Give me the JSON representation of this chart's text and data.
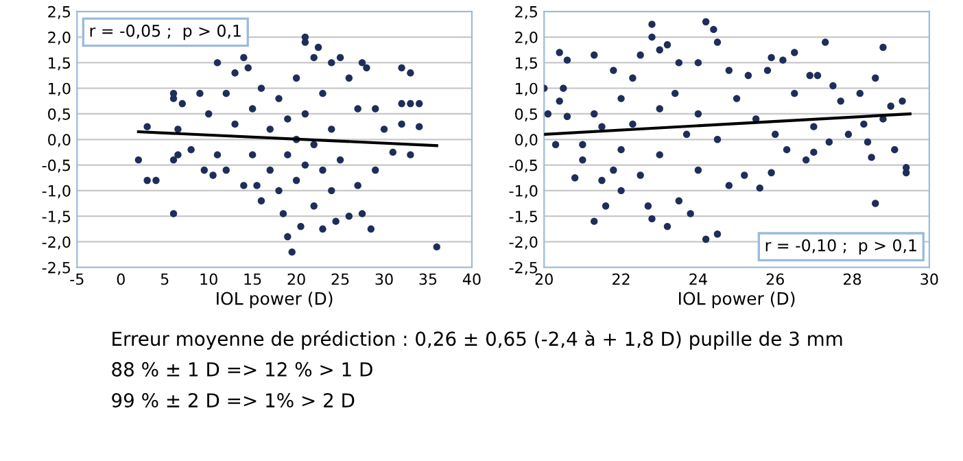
{
  "chart_data": [
    {
      "type": "scatter",
      "xlabel": "IOL power (D)",
      "xlim": [
        -5,
        40
      ],
      "ylim": [
        -2.5,
        2.5
      ],
      "xticks": [
        -5,
        0,
        5,
        10,
        15,
        20,
        25,
        30,
        35,
        40
      ],
      "yticks": [
        {
          "value": -2.5,
          "label": "-2,5"
        },
        {
          "value": -2.0,
          "label": "-2,0"
        },
        {
          "value": -1.5,
          "label": "-1,5"
        },
        {
          "value": -1.0,
          "label": "-1,0"
        },
        {
          "value": -0.5,
          "label": "-0,5"
        },
        {
          "value": 0.0,
          "label": "0,0"
        },
        {
          "value": 0.5,
          "label": "0,5"
        },
        {
          "value": 1.0,
          "label": "1,0"
        },
        {
          "value": 1.5,
          "label": "1,5"
        },
        {
          "value": 2.0,
          "label": "2,0"
        },
        {
          "value": 2.5,
          "label": "2,5"
        }
      ],
      "grid": "y",
      "annotations": [
        "r = -0,05 ;  p > 0,1"
      ],
      "series": [
        {
          "type": "scatter",
          "marker": "circle",
          "color": "#1f2d5a",
          "x": [
            2,
            3,
            3,
            4,
            6,
            6,
            6,
            6,
            6.5,
            6.5,
            7,
            8,
            9,
            9.5,
            10,
            10.5,
            11,
            11,
            12,
            12,
            13,
            13,
            14,
            14,
            14.5,
            15,
            15,
            15.5,
            16,
            16,
            17,
            17,
            18,
            18,
            18.5,
            19,
            19,
            19,
            19.5,
            20,
            20,
            20,
            20.5,
            21,
            21,
            21,
            21,
            22,
            22,
            22,
            22.5,
            23,
            23,
            23,
            24,
            24,
            24,
            24.5,
            25,
            25,
            26,
            26,
            27,
            27,
            27.5,
            27.5,
            28,
            28.5,
            29,
            29,
            30,
            31,
            32,
            32,
            32,
            33,
            33,
            33,
            34,
            34,
            36
          ],
          "values": [
            -0.4,
            0.25,
            -0.8,
            -0.8,
            0.9,
            0.8,
            -0.4,
            -1.45,
            0.2,
            -0.3,
            0.7,
            -0.2,
            0.9,
            -0.6,
            0.5,
            -0.7,
            1.5,
            -0.3,
            0.9,
            -0.6,
            1.3,
            0.3,
            1.6,
            -0.9,
            1.4,
            0.6,
            -0.3,
            -0.9,
            1.0,
            -1.2,
            0.2,
            -0.6,
            0.8,
            -1.0,
            -1.45,
            0.4,
            -0.3,
            -1.9,
            -2.2,
            1.2,
            0.0,
            -0.8,
            -1.7,
            1.9,
            2.0,
            0.5,
            -0.5,
            1.6,
            -0.1,
            -1.3,
            1.8,
            0.9,
            -0.6,
            -1.75,
            1.5,
            0.2,
            -1.0,
            -1.6,
            1.6,
            -0.4,
            1.2,
            -1.5,
            0.6,
            -0.9,
            1.5,
            -1.45,
            1.4,
            -1.75,
            0.6,
            -0.6,
            0.2,
            -0.25,
            1.4,
            0.7,
            0.3,
            1.3,
            0.7,
            -0.3,
            0.7,
            0.25,
            -2.1
          ]
        },
        {
          "type": "line",
          "color": "#000000",
          "x": [
            2,
            36
          ],
          "values": [
            0.15,
            -0.12
          ]
        }
      ]
    },
    {
      "type": "scatter",
      "xlabel": "IOL power (D)",
      "xlim": [
        20,
        30
      ],
      "ylim": [
        -2.5,
        2.5
      ],
      "xticks": [
        20,
        22,
        24,
        26,
        28,
        30
      ],
      "yticks": [
        {
          "value": -2.5,
          "label": "-2,5"
        },
        {
          "value": -2.0,
          "label": "-2,0"
        },
        {
          "value": -1.5,
          "label": "-1,5"
        },
        {
          "value": -1.0,
          "label": "-1,0"
        },
        {
          "value": -0.5,
          "label": "-0,5"
        },
        {
          "value": 0.0,
          "label": "0,0"
        },
        {
          "value": 0.5,
          "label": "0,5"
        },
        {
          "value": 1.0,
          "label": "1,0"
        },
        {
          "value": 1.5,
          "label": "1,5"
        },
        {
          "value": 2.0,
          "label": "2,0"
        },
        {
          "value": 2.5,
          "label": "2,5"
        }
      ],
      "grid": "y",
      "annotations": [
        "r = -0,10 ;  p > 0,1"
      ],
      "series": [
        {
          "type": "scatter",
          "marker": "circle",
          "color": "#1f2d5a",
          "x": [
            20,
            20.1,
            20.3,
            20.4,
            20.4,
            20.5,
            20.6,
            20.6,
            20.8,
            21,
            21,
            21.3,
            21.3,
            21.3,
            21.5,
            21.5,
            21.6,
            21.8,
            21.8,
            22,
            22,
            22,
            22.3,
            22.3,
            22.5,
            22.5,
            22.7,
            22.8,
            22.8,
            22.8,
            23,
            23,
            23,
            23.2,
            23.2,
            23.4,
            23.5,
            23.5,
            23.7,
            23.8,
            24,
            24,
            24,
            24.2,
            24.2,
            24.4,
            24.5,
            24.5,
            24.5,
            24.8,
            24.8,
            25,
            25.2,
            25.3,
            25.5,
            25.6,
            25.8,
            25.9,
            25.9,
            26,
            26.2,
            26.3,
            26.5,
            26.5,
            26.8,
            26.9,
            27,
            27,
            27.1,
            27.3,
            27.4,
            27.5,
            27.7,
            27.9,
            28.2,
            28.3,
            28.4,
            28.5,
            28.6,
            28.6,
            28.8,
            28.8,
            29,
            29.1,
            29.3,
            29.4,
            29.4
          ],
          "values": [
            1.0,
            0.5,
            -0.1,
            0.75,
            1.7,
            1.0,
            0.45,
            1.55,
            -0.75,
            -0.4,
            -0.1,
            1.65,
            0.5,
            -1.6,
            0.25,
            -0.8,
            -1.3,
            1.35,
            -0.6,
            0.8,
            -0.2,
            -1.0,
            1.2,
            0.3,
            1.65,
            -0.7,
            -1.3,
            2.25,
            2.0,
            -1.55,
            1.75,
            0.6,
            -0.3,
            1.85,
            -1.7,
            0.9,
            1.5,
            -1.2,
            0.1,
            -1.45,
            1.5,
            0.5,
            -0.6,
            -1.95,
            2.3,
            2.15,
            1.9,
            -1.85,
            0.0,
            1.35,
            -0.9,
            0.8,
            -0.7,
            1.25,
            0.4,
            -0.95,
            1.35,
            1.6,
            -0.65,
            0.1,
            1.55,
            -0.2,
            1.7,
            0.9,
            -0.4,
            1.25,
            0.25,
            -0.25,
            1.25,
            1.9,
            -0.05,
            1.05,
            0.75,
            0.1,
            0.9,
            0.3,
            -0.05,
            -0.35,
            1.2,
            -1.25,
            1.8,
            0.4,
            0.65,
            -0.2,
            0.75,
            -0.55,
            -0.65
          ]
        },
        {
          "type": "line",
          "color": "#000000",
          "x": [
            20,
            29.5
          ],
          "values": [
            0.1,
            0.5
          ]
        }
      ]
    },
    {
      "type": "other",
      "annotations": [
        "Erreur moyenne de prédiction : 0,26 ± 0,65 (-2,4 à + 1,8 D) pupille de 3 mm",
        "88 % ± 1 D => 12 % > 1 D",
        "99 % ± 2 D => 1% > 2 D"
      ]
    }
  ]
}
